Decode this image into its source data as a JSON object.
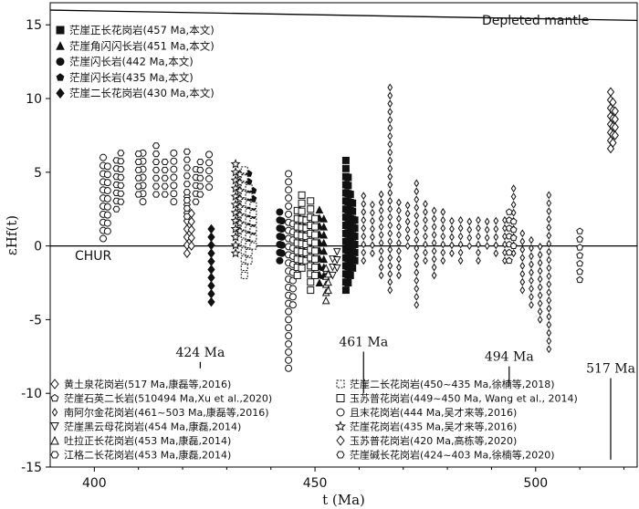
{
  "chart_data": {
    "type": "scatter",
    "xlabel": "t (Ma)",
    "ylabel": "εHf(t)",
    "xlim": [
      390,
      523
    ],
    "ylim": [
      -15,
      16.5
    ],
    "x_ticks": [
      "400",
      "450",
      "500"
    ],
    "y_ticks": [
      "-15",
      "-10",
      "-5",
      "0",
      "5",
      "10",
      "15"
    ],
    "curves": [
      {
        "label": "Depleted mantle",
        "x": [
          390,
          523
        ],
        "y": [
          16.0,
          15.3
        ]
      },
      {
        "label": "CHUR",
        "x": [
          390,
          523
        ],
        "y": [
          0,
          0
        ]
      }
    ],
    "age_markers": [
      {
        "label": "424 Ma",
        "x": 424
      },
      {
        "label": "461 Ma",
        "x": 461
      },
      {
        "label": "494 Ma",
        "x": 494
      },
      {
        "label": "517 Ma",
        "x": 517
      }
    ],
    "legend_top": [
      {
        "label": "茫崖正长花岗岩(457 Ma,本文)",
        "marker": "square"
      },
      {
        "label": "茫崖角闪闪长岩(451 Ma,本文)",
        "marker": "triangle"
      },
      {
        "label": "茫崖闪长岩(442 Ma,本文)",
        "marker": "circle"
      },
      {
        "label": "茫崖闪长岩(435 Ma,本文)",
        "marker": "pentagon"
      },
      {
        "label": "茫崖二长花岗岩(430 Ma,本文)",
        "marker": "diamond"
      }
    ],
    "legend_bottom_left": [
      {
        "label": "黄土泉花岗岩(517 Ma,康磊等,2016)",
        "marker": "diamond-open"
      },
      {
        "label": "茫崖石英二长岩(510494 Ma,Xu et al.,2020)",
        "marker": "pentagon-open"
      },
      {
        "label": "南阿尔金花岗岩(461~503 Ma,康磊等,2016)",
        "marker": "diamond-small-open"
      },
      {
        "label": "茫崖黑云母花岗岩(454 Ma,康磊,2014)",
        "marker": "triangle-down-open"
      },
      {
        "label": "吐拉正长花岗岩(453 Ma,康磊,2014)",
        "marker": "triangle-open"
      },
      {
        "label": "江格二长花岗岩(453 Ma,康磊,2014)",
        "marker": "hexagon-open"
      }
    ],
    "legend_bottom_right": [
      {
        "label": "茫崖二长花岗岩(450~435 Ma,徐楠等,2018)",
        "marker": "square-dashed"
      },
      {
        "label": "玉苏普花岗岩(449~450 Ma, Wang et al., 2014)",
        "marker": "square-open"
      },
      {
        "label": "且末花岗岩(444 Ma,吴才来等,2016)",
        "marker": "circle-open"
      },
      {
        "label": "茫崖花岗岩(435 Ma,吴才来等,2016)",
        "marker": "star"
      },
      {
        "label": "玉苏普花岗岩(420 Ma,高栋等,2020)",
        "marker": "diamond-open"
      },
      {
        "label": "茫崖碱长花岗岩(424~403 Ma,徐楠等,2020)",
        "marker": "hexagon-open"
      }
    ],
    "series": [
      {
        "name": "茫崖正长花岗岩(457 Ma,本文)",
        "marker": "square",
        "x": [
          457,
          457.5,
          458,
          458.5,
          459
        ],
        "y": [
          [
            -3,
            6
          ],
          [
            -2.5,
            5
          ],
          [
            -2,
            4
          ],
          [
            -1.5,
            3
          ],
          [
            -1,
            2
          ]
        ]
      },
      {
        "name": "茫崖角闪闪长岩(451 Ma,本文)",
        "marker": "triangle",
        "x": [
          451,
          452
        ],
        "y": [
          [
            -2.5,
            2.6
          ],
          [
            -2,
            2.3
          ]
        ]
      },
      {
        "name": "茫崖闪长岩(442 Ma,本文)",
        "marker": "circle",
        "x": [
          442,
          442.5
        ],
        "y": [
          [
            -1,
            2.6
          ],
          [
            -0.5,
            2
          ]
        ]
      },
      {
        "name": "茫崖闪长岩(435 Ma,本文)",
        "marker": "pentagon",
        "x": [
          435,
          436
        ],
        "y": [
          [
            0.5,
            5.3
          ],
          [
            1,
            4
          ]
        ]
      },
      {
        "name": "茫崖二长花岗岩(430 Ma,本文)",
        "marker": "diamond",
        "x": [
          426.5
        ],
        "y": [
          [
            -3.8,
            1.6
          ]
        ]
      },
      {
        "name": "且末花岗岩(444 Ma,吴才来等,2016)",
        "marker": "circle-open",
        "x": [
          402,
          403,
          411,
          418,
          426,
          444,
          445
        ],
        "y": [
          [
            0.5,
            6.2
          ],
          [
            1,
            5.5
          ],
          [
            3,
            6.5
          ],
          [
            3,
            6.7
          ],
          [
            4,
            6.7
          ],
          [
            -8.3,
            4.9
          ],
          [
            -4,
            2
          ]
        ]
      },
      {
        "name": "茫崖花岗岩(435 Ma,吴才来等,2016)",
        "marker": "star",
        "x": [
          432,
          433
        ],
        "y": [
          [
            -0.5,
            6
          ],
          [
            1,
            5
          ]
        ]
      },
      {
        "name": "茫崖二长花岗岩(450~435 Ma,徐楠等,2018)",
        "marker": "square-dashed",
        "x": [
          434,
          435,
          436
        ],
        "y": [
          [
            -2,
            5.5
          ],
          [
            -1,
            4
          ],
          [
            0,
            3
          ]
        ]
      },
      {
        "name": "玉苏普花岗岩(449~450 Ma, Wang et al., 2014)",
        "marker": "square-open",
        "x": [
          446,
          447,
          448,
          449,
          450
        ],
        "y": [
          [
            -2,
            2.5
          ],
          [
            -1.5,
            3.5
          ],
          [
            -1,
            2
          ],
          [
            -3,
            3.5
          ],
          [
            -2,
            2
          ]
        ]
      },
      {
        "name": "茫崖黑云母花岗岩(454 Ma,康磊,2014)",
        "marker": "triangle-down-open",
        "x": [
          454,
          455
        ],
        "y": [
          [
            -2,
            -0.5
          ],
          [
            -1.5,
            -0.3
          ]
        ]
      },
      {
        "name": "吐拉正长花岗岩(453 Ma,康磊,2014)",
        "marker": "triangle-open",
        "x": [
          452.5,
          453
        ],
        "y": [
          [
            -3.7,
            -1.5
          ],
          [
            -3,
            -1.5
          ]
        ]
      },
      {
        "name": "黄土泉花岗岩(517 Ma,康磊等,2016)",
        "marker": "diamond-open",
        "x": [
          517,
          517.5,
          518
        ],
        "y": [
          [
            6.6,
            10.5
          ],
          [
            7,
            10
          ],
          [
            7.5,
            9.5
          ]
        ]
      },
      {
        "name": "玉苏普花岗岩(420 Ma,高栋等,2020)",
        "marker": "diamond-open",
        "x": [
          421,
          422
        ],
        "y": [
          [
            -0.5,
            3.5
          ],
          [
            0,
            2.5
          ]
        ]
      },
      {
        "name": "南阿尔金花岗岩(461~503 Ma,康磊等,2016)",
        "marker": "diamond-small-open",
        "x": [
          461,
          463,
          465,
          467,
          469,
          471,
          473,
          475,
          477,
          479,
          481,
          483,
          485,
          487,
          489,
          491,
          493,
          495,
          497,
          499,
          501,
          503
        ],
        "y": [
          [
            -1,
            3.5
          ],
          [
            -0.5,
            3
          ],
          [
            -2,
            4
          ],
          [
            -3,
            11
          ],
          [
            -2,
            3
          ],
          [
            0,
            3
          ],
          [
            -4,
            4.5
          ],
          [
            -1,
            3
          ],
          [
            -2,
            2.5
          ],
          [
            -1,
            2.5
          ],
          [
            -0.5,
            2
          ],
          [
            -1,
            2
          ],
          [
            0,
            2
          ],
          [
            -1,
            2
          ],
          [
            0,
            2
          ],
          [
            -0.5,
            2
          ],
          [
            -1,
            2
          ],
          [
            -0.5,
            4
          ],
          [
            -3,
            1
          ],
          [
            -4,
            0.5
          ],
          [
            -5,
            0
          ],
          [
            -7,
            3.6
          ]
        ]
      },
      {
        "name": "茫崖石英二长岩(510494 Ma,Xu et al.,2020)",
        "marker": "pentagon-open",
        "x": [
          494,
          495,
          510
        ],
        "y": [
          [
            -1,
            2.5
          ],
          [
            0,
            2
          ],
          [
            -2.3,
            1.2
          ]
        ]
      },
      {
        "name": "茫崖碱长花岗岩(424~403 Ma,徐楠等,2020)",
        "marker": "hexagon-open",
        "x": [
          405,
          406,
          410,
          414,
          416,
          421,
          423,
          424
        ],
        "y": [
          [
            2.5,
            6
          ],
          [
            3,
            6.5
          ],
          [
            3.5,
            6.5
          ],
          [
            3.5,
            6.8
          ],
          [
            3.5,
            6
          ],
          [
            2,
            6.5
          ],
          [
            3,
            5.5
          ],
          [
            3.5,
            6
          ]
        ]
      }
    ]
  }
}
